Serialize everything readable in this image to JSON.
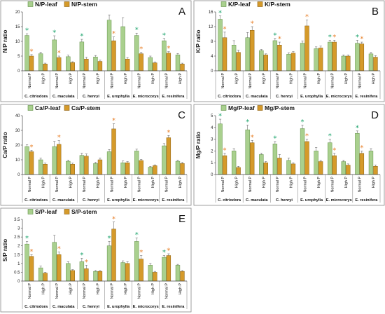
{
  "colors": {
    "leaf": "#a9d08e",
    "leaf_edge": "#5f8f44",
    "stem": "#d59a2a",
    "stem_edge": "#8c5f10",
    "star_leaf": "#1aa36b",
    "star_stem": "#e8802a"
  },
  "chart_data": [
    {
      "type": "bar",
      "panel_letter": "A",
      "ylabel": "N/P ratio",
      "ylim": [
        0,
        20
      ],
      "yticks": [
        0,
        5,
        10,
        15,
        20
      ],
      "categories": [
        "Normal P",
        "High P",
        "Normal P",
        "High P",
        "Normal P",
        "High P",
        "Normal P",
        "High P",
        "Normal P",
        "High P",
        "Normal P",
        "High P"
      ],
      "species": [
        "C. citriodora",
        "C. maculata",
        "C. henryi",
        "E. urophylla",
        "E. microcorys",
        "E. resinifera"
      ],
      "series": [
        {
          "name": "N/P-leaf",
          "values": [
            12.0,
            5.8,
            10.5,
            4.8,
            9.8,
            4.7,
            17.2,
            15.0,
            12.0,
            4.5,
            10.2,
            5.4
          ],
          "errors": [
            0.6,
            0.5,
            1.4,
            0.5,
            0.9,
            0.5,
            1.8,
            3.0,
            0.8,
            0.5,
            0.8,
            0.5
          ]
        },
        {
          "name": "N/P-stem",
          "values": [
            5.0,
            2.3,
            4.5,
            2.8,
            4.0,
            3.2,
            10.2,
            4.0,
            5.8,
            2.7,
            6.0,
            2.3
          ],
          "errors": [
            0.5,
            0.3,
            0.5,
            0.3,
            0.6,
            0.4,
            1.3,
            0.5,
            0.5,
            0.3,
            0.5,
            0.3
          ]
        }
      ],
      "stars_leaf": [
        0,
        2,
        4,
        8,
        10
      ],
      "stars_stem": [
        0,
        2,
        6,
        8,
        10
      ]
    },
    {
      "type": "bar",
      "panel_letter": "B",
      "ylabel": "K/P ratio",
      "ylim": [
        0,
        16
      ],
      "yticks": [
        0,
        4,
        8,
        12,
        16
      ],
      "categories": [
        "Normal P",
        "High P",
        "Normal P",
        "High P",
        "Normal P",
        "High P",
        "Normal P",
        "High P",
        "Normal P",
        "High P",
        "Normal P",
        "High P"
      ],
      "species": [
        "C. citriodora",
        "C. maculata",
        "C. henryi",
        "E. urophylla",
        "E. microcorys",
        "E. resinifera"
      ],
      "series": [
        {
          "name": "K/P-leaf",
          "values": [
            14.0,
            7.0,
            9.0,
            5.5,
            8.2,
            4.5,
            7.5,
            6.0,
            7.8,
            4.0,
            7.5,
            4.6
          ],
          "errors": [
            0.9,
            1.2,
            1.4,
            0.3,
            0.6,
            0.4,
            0.6,
            0.5,
            0.5,
            0.3,
            0.8,
            0.4
          ]
        },
        {
          "name": "K/P-stem",
          "values": [
            9.0,
            5.0,
            11.0,
            4.3,
            7.0,
            4.8,
            12.2,
            6.2,
            7.8,
            4.0,
            7.3,
            3.7
          ],
          "errors": [
            1.5,
            0.6,
            1.0,
            0.3,
            0.8,
            0.4,
            1.6,
            0.5,
            0.5,
            0.3,
            0.5,
            0.4
          ]
        }
      ],
      "stars_leaf": [
        0,
        4,
        8,
        10
      ],
      "stars_stem": [
        0,
        2,
        4,
        6,
        8,
        10
      ]
    },
    {
      "type": "bar",
      "panel_letter": "C",
      "ylabel": "Ca/P ratio",
      "ylim": [
        0,
        40
      ],
      "yticks": [
        0,
        10,
        20,
        30,
        40
      ],
      "categories": [
        "Normal P",
        "High P",
        "Normal P",
        "High P",
        "Normal P",
        "High P",
        "Normal P",
        "High P",
        "Normal P",
        "High P",
        "Normal P",
        "High P"
      ],
      "species": [
        "C. citriodora",
        "C. maculata",
        "C. henryi",
        "E. urophylla",
        "E. microcorys",
        "E. resinifera"
      ],
      "series": [
        {
          "name": "Ca/P-leaf",
          "values": [
            19.0,
            10.0,
            19.0,
            9.0,
            13.0,
            7.5,
            15.5,
            8.0,
            16.0,
            5.0,
            19.5,
            9.0
          ],
          "errors": [
            1.2,
            1.2,
            3.5,
            0.8,
            1.5,
            0.8,
            1.5,
            1.2,
            1.2,
            0.5,
            1.5,
            0.8
          ]
        },
        {
          "name": "Ca/P-stem",
          "values": [
            15.5,
            7.0,
            20.5,
            7.0,
            12.5,
            10.0,
            31.0,
            8.0,
            9.5,
            6.0,
            25.0,
            7.5
          ],
          "errors": [
            1.0,
            0.7,
            2.5,
            0.7,
            1.5,
            1.2,
            3.5,
            0.8,
            0.8,
            0.6,
            1.5,
            0.7
          ]
        }
      ],
      "stars_leaf": [],
      "stars_stem": [
        0,
        2,
        6,
        10
      ]
    },
    {
      "type": "bar",
      "panel_letter": "D",
      "ylabel": "Mg/P ratio",
      "ylim": [
        0,
        5
      ],
      "yticks": [
        0,
        1,
        2,
        3,
        4,
        5
      ],
      "categories": [
        "Normal P",
        "High P",
        "Normal P",
        "High P",
        "Normal P",
        "High P",
        "Normal P",
        "High P",
        "Normal P",
        "High P",
        "Normal P",
        "High P"
      ],
      "species": [
        "C. citriodora",
        "C. maculata",
        "C. henryi",
        "E. urophylla",
        "E. microcorys",
        "E. resinifera"
      ],
      "series": [
        {
          "name": "Mg/P-leaf",
          "values": [
            4.3,
            2.0,
            3.8,
            1.7,
            2.6,
            1.2,
            3.9,
            2.0,
            2.7,
            1.1,
            3.5,
            2.0
          ],
          "errors": [
            0.4,
            0.2,
            0.4,
            0.1,
            0.2,
            0.2,
            0.3,
            0.3,
            0.3,
            0.1,
            0.2,
            0.2
          ]
        },
        {
          "name": "Mg/P-stem",
          "values": [
            1.6,
            0.6,
            2.7,
            1.0,
            1.4,
            0.9,
            2.8,
            1.1,
            1.6,
            0.8,
            1.8,
            0.7
          ],
          "errors": [
            0.2,
            0.1,
            0.2,
            0.1,
            0.3,
            0.1,
            0.2,
            0.1,
            0.2,
            0.1,
            0.2,
            0.1
          ]
        }
      ],
      "stars_leaf": [
        0,
        2,
        4,
        6,
        8,
        10
      ],
      "stars_stem": [
        0,
        2,
        6,
        8,
        10
      ]
    },
    {
      "type": "bar",
      "panel_letter": "E",
      "ylabel": "S/P ratio",
      "ylim": [
        0,
        3.5
      ],
      "yticks": [
        0,
        0.5,
        1,
        1.5,
        2,
        2.5,
        3,
        3.5
      ],
      "categories": [
        "Normal P",
        "High P",
        "Normal P",
        "High P",
        "Normal P",
        "High P",
        "Normal P",
        "High P",
        "Normal P",
        "High P",
        "Normal P",
        "High P"
      ],
      "species": [
        "C. citriodora",
        "C. maculata",
        "C. henryi",
        "E. urophylla",
        "E. microcorys",
        "E. resinifera"
      ],
      "series": [
        {
          "name": "S/P-leaf",
          "values": [
            2.1,
            0.75,
            2.2,
            1.0,
            1.1,
            0.55,
            2.0,
            1.05,
            2.25,
            0.9,
            1.35,
            0.9
          ],
          "errors": [
            0.15,
            0.1,
            0.4,
            0.1,
            0.2,
            0.05,
            0.25,
            0.1,
            0.2,
            0.1,
            0.1,
            0.05
          ]
        },
        {
          "name": "S/P-stem",
          "values": [
            1.4,
            0.45,
            1.5,
            0.6,
            0.7,
            0.55,
            2.95,
            1.0,
            1.25,
            0.5,
            1.45,
            0.55
          ],
          "errors": [
            0.1,
            0.05,
            0.15,
            0.05,
            0.2,
            0.05,
            0.4,
            0.1,
            0.2,
            0.05,
            0.1,
            0.05
          ]
        }
      ],
      "stars_leaf": [
        0,
        4,
        6,
        8,
        10
      ],
      "stars_stem": [
        0,
        2,
        4,
        6,
        8,
        10
      ]
    }
  ]
}
